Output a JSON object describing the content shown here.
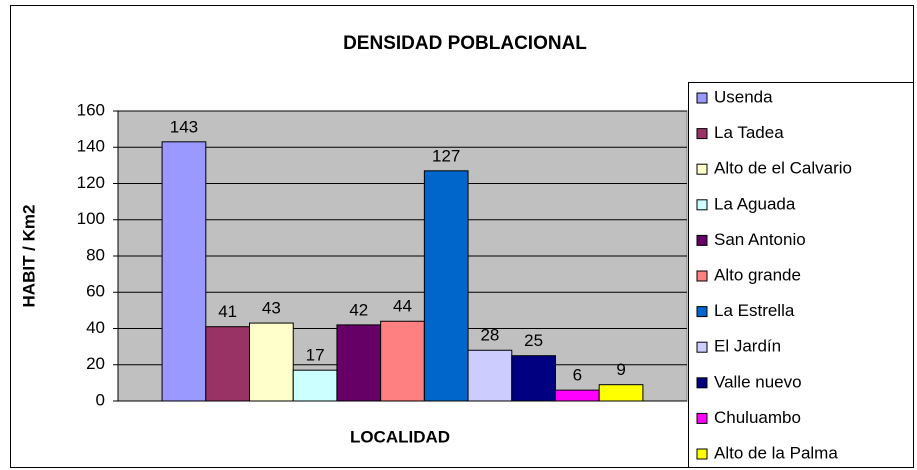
{
  "chart_data": {
    "type": "bar",
    "title": "DENSIDAD POBLACIONAL",
    "y_label": "HABIT / Km2",
    "x_label": "LOCALIDAD",
    "categories": [
      null
    ],
    "series": [
      {
        "name": "Usenda",
        "color": "#9999ff",
        "values": [
          143
        ]
      },
      {
        "name": "La Tadea",
        "color": "#993366",
        "values": [
          41
        ]
      },
      {
        "name": "Alto de el Calvario",
        "color": "#ffffcc",
        "values": [
          43
        ]
      },
      {
        "name": "La Aguada",
        "color": "#ccffff",
        "values": [
          17
        ]
      },
      {
        "name": "San Antonio",
        "color": "#660066",
        "values": [
          42
        ]
      },
      {
        "name": "Alto grande",
        "color": "#ff8080",
        "values": [
          44
        ]
      },
      {
        "name": "La Estrella",
        "color": "#0066cc",
        "values": [
          127
        ]
      },
      {
        "name": "El Jardín",
        "color": "#ccccff",
        "values": [
          28
        ]
      },
      {
        "name": "Valle nuevo",
        "color": "#000080",
        "values": [
          25
        ]
      },
      {
        "name": "Chuluambo",
        "color": "#ff00ff",
        "values": [
          6
        ]
      },
      {
        "name": "Alto de la Palma",
        "color": "#ffff00",
        "values": [
          9
        ]
      }
    ],
    "ylim": [
      0,
      160
    ],
    "yticks": [
      0,
      20,
      40,
      60,
      80,
      100,
      120,
      140,
      160
    ],
    "grid": true,
    "legend": "right",
    "data_labels": true
  }
}
